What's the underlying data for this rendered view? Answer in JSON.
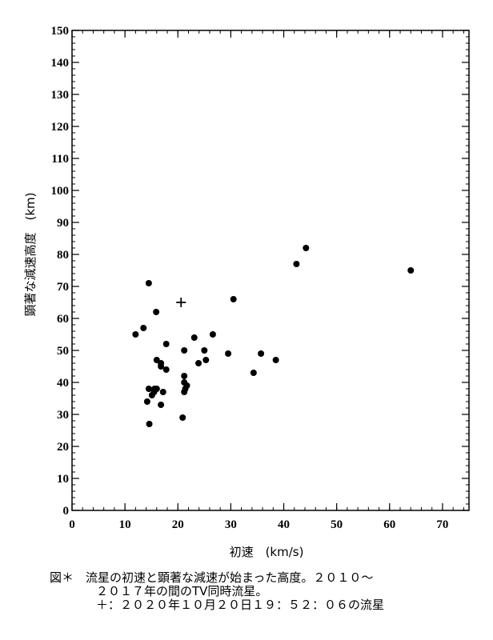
{
  "chart_data": {
    "type": "scatter",
    "xlabel": "初速　(km/s)",
    "ylabel": "顕著な減速高度　(km)",
    "xlim": [
      0,
      75
    ],
    "ylim": [
      0,
      150
    ],
    "xticks": [
      0,
      10,
      20,
      30,
      40,
      50,
      60,
      70
    ],
    "yticks": [
      0,
      10,
      20,
      30,
      40,
      50,
      60,
      70,
      80,
      90,
      100,
      110,
      120,
      130,
      140,
      150
    ],
    "grid": false,
    "series": [
      {
        "marker": "dot",
        "color": "#000000",
        "points": [
          [
            12.0,
            55
          ],
          [
            13.5,
            57
          ],
          [
            14.5,
            71
          ],
          [
            15.9,
            62
          ],
          [
            17.8,
            52
          ],
          [
            14.2,
            34
          ],
          [
            14.5,
            38
          ],
          [
            14.6,
            27
          ],
          [
            15.1,
            36
          ],
          [
            15.5,
            37
          ],
          [
            15.6,
            38
          ],
          [
            16.0,
            38
          ],
          [
            16.0,
            47
          ],
          [
            16.8,
            46
          ],
          [
            16.8,
            45
          ],
          [
            16.8,
            33
          ],
          [
            17.2,
            37
          ],
          [
            17.8,
            44
          ],
          [
            20.9,
            29
          ],
          [
            21.2,
            42
          ],
          [
            21.2,
            40
          ],
          [
            21.2,
            37
          ],
          [
            21.4,
            38
          ],
          [
            21.7,
            39
          ],
          [
            21.2,
            50
          ],
          [
            23.1,
            54
          ],
          [
            23.9,
            46
          ],
          [
            25.0,
            50
          ],
          [
            25.3,
            47
          ],
          [
            26.6,
            55
          ],
          [
            29.5,
            49
          ],
          [
            30.5,
            66
          ],
          [
            34.3,
            43
          ],
          [
            35.7,
            49
          ],
          [
            38.5,
            47
          ],
          [
            42.4,
            77
          ],
          [
            44.2,
            82
          ],
          [
            64.0,
            75
          ]
        ]
      },
      {
        "marker": "plus",
        "color": "#000000",
        "points": [
          [
            20.6,
            65
          ]
        ]
      }
    ]
  },
  "caption": {
    "line1": "図＊　流星の初速と顕著な減速が始まった高度。２０１０～",
    "line2": "２０１７年の間のTV同時流星。",
    "line3": "＋：２０２０年１０月２０日１９：５２：０６の流星"
  }
}
